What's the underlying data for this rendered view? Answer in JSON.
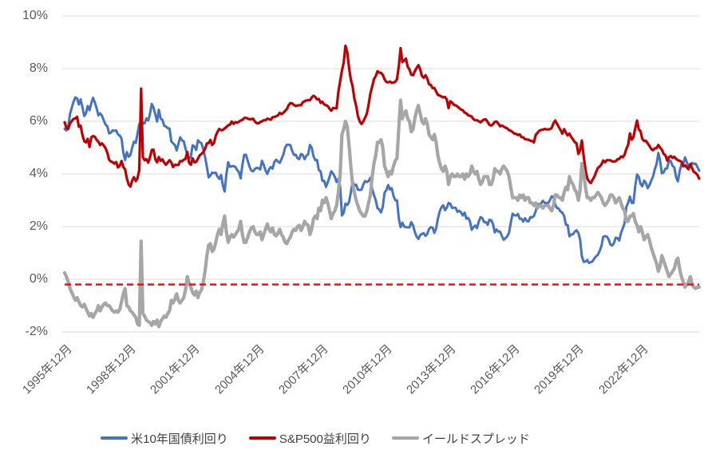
{
  "chart_data": {
    "type": "line",
    "title": "",
    "background_color": "#FFFFFF",
    "grid": "horizontal",
    "grid_color": "#D9D9D9",
    "tick_label_color": "#595959",
    "legend_text_color": "#404040",
    "legend_position": "bottom",
    "ylim": [
      -2,
      10
    ],
    "y_unit": "%",
    "y_ticks": [
      {
        "value": 10,
        "label": "10%"
      },
      {
        "value": 8,
        "label": "8%"
      },
      {
        "value": 6,
        "label": "6%"
      },
      {
        "value": 4,
        "label": "4%"
      },
      {
        "value": 2,
        "label": "2%"
      },
      {
        "value": 0,
        "label": "0%"
      },
      {
        "value": -2,
        "label": "-2%"
      }
    ],
    "x_start": "1995-12",
    "x_frequency": "monthly",
    "x_tick_interval_months": 36,
    "x_tick_labels": [
      "1995年12月",
      "1998年12月",
      "2001年12月",
      "2004年12月",
      "2007年12月",
      "2010年12月",
      "2013年12月",
      "2016年12月",
      "2019年12月",
      "2022年12月"
    ],
    "reference_line": {
      "value": -0.2,
      "color": "#FF0000",
      "style": "dashed"
    },
    "series": [
      {
        "name": "米10年国債利回り",
        "color": "#4472C4",
        "values": [
          5.71,
          5.65,
          5.81,
          6.27,
          6.51,
          6.74,
          6.91,
          6.87,
          6.64,
          6.83,
          6.53,
          6.2,
          6.3,
          6.58,
          6.42,
          6.69,
          6.89,
          6.71,
          6.49,
          6.22,
          6.3,
          6.21,
          6.03,
          5.88,
          5.81,
          5.54,
          5.57,
          5.65,
          5.64,
          5.65,
          5.5,
          5.46,
          5.34,
          4.81,
          4.53,
          4.83,
          4.65,
          4.72,
          5.0,
          5.23,
          5.18,
          5.54,
          5.9,
          5.79,
          5.94,
          5.92,
          6.11,
          6.03,
          6.28,
          6.66,
          6.52,
          6.26,
          5.99,
          6.44,
          6.1,
          6.05,
          5.83,
          5.8,
          5.74,
          5.72,
          5.24,
          5.16,
          5.1,
          4.89,
          5.14,
          5.39,
          5.28,
          5.24,
          4.97,
          4.73,
          4.57,
          4.65,
          5.09,
          5.04,
          4.91,
          5.28,
          5.21,
          5.16,
          4.93,
          4.65,
          4.26,
          3.87,
          3.94,
          4.05,
          4.03,
          4.05,
          3.9,
          3.81,
          3.96,
          3.57,
          3.33,
          3.98,
          4.45,
          4.27,
          4.29,
          4.3,
          4.27,
          4.15,
          4.08,
          3.83,
          4.35,
          4.72,
          4.73,
          4.5,
          4.28,
          4.13,
          4.1,
          4.19,
          4.23,
          4.22,
          4.17,
          4.5,
          4.34,
          4.14,
          4.0,
          4.18,
          4.26,
          4.2,
          4.46,
          4.54,
          4.47,
          4.42,
          4.57,
          4.72,
          4.99,
          5.11,
          5.11,
          5.09,
          4.88,
          4.72,
          4.73,
          4.6,
          4.56,
          4.76,
          4.72,
          4.56,
          4.69,
          4.75,
          5.1,
          5.0,
          4.67,
          4.52,
          4.53,
          4.15,
          4.1,
          3.74,
          3.74,
          3.51,
          3.68,
          3.88,
          4.1,
          4.01,
          3.89,
          3.69,
          3.81,
          3.53,
          2.42,
          2.52,
          2.87,
          2.82,
          2.93,
          3.29,
          3.72,
          3.56,
          3.59,
          3.4,
          3.39,
          3.4,
          3.59,
          3.73,
          3.69,
          3.73,
          3.85,
          3.42,
          3.2,
          3.01,
          2.7,
          2.65,
          2.54,
          2.76,
          3.29,
          3.39,
          3.58,
          3.41,
          3.46,
          3.17,
          3.0,
          3.0,
          2.3,
          1.98,
          2.15,
          2.01,
          1.98,
          1.97,
          1.97,
          2.17,
          2.05,
          1.8,
          1.62,
          1.53,
          1.68,
          1.72,
          1.75,
          1.65,
          1.72,
          1.91,
          1.98,
          1.96,
          1.76,
          1.93,
          2.3,
          2.58,
          2.74,
          2.81,
          2.62,
          2.72,
          2.9,
          2.86,
          2.71,
          2.72,
          2.71,
          2.56,
          2.6,
          2.54,
          2.42,
          2.53,
          2.3,
          2.33,
          2.21,
          1.88,
          1.98,
          2.04,
          1.94,
          2.2,
          2.36,
          2.32,
          2.17,
          2.17,
          2.07,
          2.26,
          2.24,
          2.09,
          1.78,
          1.89,
          1.81,
          1.81,
          1.64,
          1.5,
          1.56,
          1.63,
          1.76,
          2.14,
          2.49,
          2.43,
          2.42,
          2.48,
          2.3,
          2.3,
          2.19,
          2.32,
          2.21,
          2.2,
          2.36,
          2.35,
          2.4,
          2.58,
          2.86,
          2.84,
          2.87,
          2.98,
          2.91,
          2.89,
          2.89,
          3.0,
          3.15,
          3.12,
          2.83,
          2.71,
          2.68,
          2.57,
          2.53,
          2.4,
          2.07,
          2.06,
          1.63,
          1.7,
          1.71,
          1.81,
          1.86,
          1.76,
          1.5,
          0.87,
          0.66,
          0.67,
          0.73,
          0.62,
          0.65,
          0.68,
          0.79,
          0.87,
          0.93,
          1.08,
          1.26,
          1.61,
          1.64,
          1.62,
          1.52,
          1.32,
          1.28,
          1.37,
          1.58,
          1.56,
          1.47,
          1.76,
          1.93,
          2.13,
          2.75,
          2.9,
          3.14,
          2.9,
          2.9,
          3.52,
          3.98,
          3.89,
          3.62,
          3.53,
          3.75,
          3.66,
          3.46,
          3.57,
          3.75,
          3.9,
          4.17,
          4.38,
          4.8,
          4.5,
          4.02,
          4.06,
          4.21,
          4.21,
          4.54,
          4.48,
          4.31,
          4.25,
          3.87,
          3.72,
          4.1,
          4.36,
          4.39,
          4.63,
          4.45,
          4.28,
          4.28,
          4.42,
          4.38,
          4.39,
          4.26,
          4.12
        ]
      },
      {
        "name": "S&P500益利回り",
        "color": "#C00000",
        "values": [
          5.96,
          5.75,
          5.71,
          5.92,
          6.01,
          6.09,
          6.11,
          6.17,
          5.79,
          5.83,
          5.48,
          5.25,
          5.2,
          5.33,
          5.02,
          5.39,
          5.44,
          5.41,
          5.29,
          5.22,
          5.1,
          5.16,
          5.08,
          4.98,
          4.81,
          4.54,
          4.47,
          4.45,
          4.39,
          4.45,
          4.25,
          4.31,
          4.49,
          4.26,
          4.18,
          3.83,
          3.6,
          3.52,
          3.75,
          3.88,
          3.73,
          3.84,
          4.15,
          7.24,
          4.64,
          4.52,
          4.56,
          4.43,
          4.63,
          4.91,
          4.92,
          4.56,
          4.44,
          4.64,
          4.5,
          4.55,
          4.43,
          4.35,
          4.44,
          4.52,
          4.44,
          4.26,
          4.35,
          4.34,
          4.34,
          4.49,
          4.48,
          4.54,
          4.57,
          4.83,
          4.42,
          4.35,
          4.59,
          4.44,
          4.46,
          4.58,
          4.71,
          4.76,
          4.83,
          4.95,
          5.16,
          5.17,
          5.29,
          5.1,
          5.18,
          5.45,
          5.6,
          5.71,
          5.66,
          5.67,
          5.73,
          5.78,
          5.85,
          5.87,
          5.99,
          5.9,
          5.97,
          5.95,
          5.98,
          6.03,
          6.05,
          6.12,
          6.13,
          6.1,
          6.08,
          6.08,
          6.1,
          5.99,
          5.93,
          5.92,
          5.97,
          6.0,
          6.04,
          6.04,
          6.1,
          6.08,
          6.06,
          6.15,
          6.16,
          6.19,
          6.22,
          6.32,
          6.27,
          6.32,
          6.39,
          6.46,
          6.61,
          6.69,
          6.68,
          6.62,
          6.58,
          6.6,
          6.61,
          6.61,
          6.72,
          6.76,
          6.79,
          6.8,
          6.8,
          6.9,
          6.97,
          6.92,
          6.83,
          6.85,
          6.7,
          6.74,
          6.64,
          6.61,
          6.58,
          6.48,
          6.4,
          6.51,
          6.49,
          6.49,
          7.11,
          7.53,
          7.92,
          8.22,
          8.87,
          8.62,
          8.03,
          7.59,
          7.32,
          6.86,
          6.59,
          6.2,
          5.99,
          5.9,
          5.99,
          6.13,
          6.29,
          6.63,
          7.05,
          7.32,
          7.6,
          7.71,
          7.9,
          7.85,
          7.84,
          7.76,
          7.59,
          7.49,
          7.48,
          7.51,
          7.46,
          7.47,
          7.5,
          7.6,
          8.1,
          8.78,
          8.25,
          8.31,
          8.38,
          8.07,
          7.97,
          7.77,
          7.75,
          7.9,
          8.02,
          8.13,
          7.98,
          7.72,
          7.65,
          7.75,
          7.62,
          7.41,
          7.38,
          7.26,
          7.26,
          7.13,
          7.0,
          6.98,
          6.94,
          6.91,
          6.92,
          6.82,
          6.5,
          6.76,
          6.71,
          6.62,
          6.61,
          6.56,
          6.5,
          6.44,
          6.42,
          6.33,
          6.3,
          6.23,
          6.21,
          6.18,
          6.08,
          6.04,
          6.04,
          6.0,
          5.96,
          6.02,
          6.07,
          6.07,
          5.97,
          5.86,
          5.84,
          5.89,
          5.98,
          5.99,
          5.91,
          5.81,
          5.84,
          5.8,
          5.76,
          5.73,
          5.66,
          5.64,
          5.59,
          5.53,
          5.52,
          5.48,
          5.5,
          5.4,
          5.39,
          5.32,
          5.31,
          5.3,
          5.26,
          5.25,
          5.2,
          5.48,
          5.56,
          5.64,
          5.67,
          5.68,
          5.71,
          5.69,
          5.69,
          5.7,
          5.75,
          5.92,
          6.03,
          5.91,
          5.78,
          5.67,
          5.53,
          5.7,
          5.57,
          5.46,
          5.53,
          5.4,
          5.31,
          5.21,
          5.16,
          4.76,
          4.9,
          5.27,
          4.66,
          4.17,
          3.83,
          3.72,
          3.65,
          3.78,
          3.89,
          4.07,
          4.23,
          4.28,
          4.36,
          4.51,
          4.44,
          4.52,
          4.52,
          4.52,
          4.48,
          4.47,
          4.48,
          4.56,
          4.57,
          4.66,
          4.63,
          4.73,
          4.95,
          5.1,
          5.54,
          5.3,
          5.4,
          5.72,
          6.03,
          5.69,
          5.62,
          5.33,
          5.25,
          5.26,
          5.16,
          5.07,
          4.95,
          4.9,
          4.97,
          4.98,
          5.1,
          5.0,
          4.92,
          4.76,
          4.71,
          4.51,
          4.64,
          4.68,
          4.61,
          4.65,
          4.57,
          4.52,
          4.5,
          4.46,
          4.29,
          4.33,
          4.25,
          4.18,
          4.38,
          4.22,
          4.08,
          4.04,
          3.96,
          3.82
        ]
      },
      {
        "name": "イールドスプレッド",
        "color": "#A6A6A6",
        "values": [
          0.25,
          0.1,
          -0.1,
          -0.35,
          -0.5,
          -0.65,
          -0.8,
          -0.7,
          -0.85,
          -1.0,
          -1.05,
          -0.95,
          -1.1,
          -1.25,
          -1.4,
          -1.3,
          -1.45,
          -1.3,
          -1.2,
          -1.0,
          -1.2,
          -1.05,
          -0.95,
          -0.9,
          -1.0,
          -1.0,
          -1.1,
          -1.2,
          -1.25,
          -1.2,
          -1.25,
          -1.15,
          -0.85,
          -0.55,
          -0.35,
          -1.0,
          -1.05,
          -1.2,
          -1.25,
          -1.35,
          -1.45,
          -1.7,
          -1.75,
          1.45,
          -1.3,
          -1.4,
          -1.55,
          -1.6,
          -1.65,
          -1.75,
          -1.6,
          -1.7,
          -1.55,
          -1.8,
          -1.6,
          -1.5,
          -1.4,
          -1.45,
          -1.3,
          -1.2,
          -0.8,
          -0.9,
          -0.75,
          -0.55,
          -0.8,
          -0.9,
          -0.8,
          -0.7,
          -0.4,
          0.1,
          -0.15,
          -0.3,
          -0.5,
          -0.6,
          -0.45,
          -0.7,
          -0.5,
          -0.4,
          -0.1,
          0.3,
          0.9,
          1.3,
          1.35,
          1.05,
          1.15,
          1.4,
          1.7,
          1.9,
          1.7,
          2.1,
          2.4,
          1.8,
          1.4,
          1.6,
          1.7,
          1.6,
          1.7,
          1.8,
          1.9,
          2.2,
          1.7,
          1.4,
          1.4,
          1.6,
          1.8,
          1.95,
          2.0,
          1.8,
          1.7,
          1.7,
          1.8,
          1.5,
          1.7,
          1.9,
          2.1,
          1.9,
          1.8,
          1.95,
          1.7,
          1.65,
          1.75,
          1.9,
          1.7,
          1.6,
          1.4,
          1.35,
          1.5,
          1.6,
          1.8,
          1.9,
          1.85,
          2.0,
          2.05,
          1.85,
          2.0,
          2.2,
          2.1,
          2.05,
          1.7,
          1.9,
          2.3,
          2.4,
          2.3,
          2.7,
          2.6,
          3.0,
          2.9,
          3.1,
          2.9,
          2.6,
          2.3,
          2.5,
          2.6,
          2.8,
          3.3,
          4.0,
          5.5,
          5.7,
          6.0,
          5.8,
          5.1,
          4.3,
          3.6,
          3.3,
          3.0,
          2.8,
          2.6,
          2.5,
          2.4,
          2.4,
          2.6,
          2.9,
          3.2,
          3.9,
          4.4,
          4.7,
          5.2,
          5.2,
          5.3,
          5.0,
          4.3,
          4.1,
          3.9,
          4.1,
          4.0,
          4.3,
          4.5,
          4.6,
          5.8,
          6.8,
          6.1,
          6.3,
          6.4,
          6.1,
          6.0,
          5.6,
          5.7,
          6.1,
          6.4,
          6.6,
          6.3,
          6.0,
          5.9,
          6.1,
          5.9,
          5.5,
          5.4,
          5.3,
          5.5,
          5.2,
          4.7,
          4.4,
          4.2,
          4.1,
          4.3,
          4.1,
          3.6,
          3.9,
          4.0,
          3.9,
          3.9,
          4.0,
          3.9,
          3.9,
          4.0,
          3.8,
          4.0,
          3.9,
          4.0,
          4.3,
          4.1,
          4.0,
          4.1,
          3.8,
          3.6,
          3.7,
          3.9,
          3.9,
          3.9,
          3.6,
          3.6,
          3.8,
          4.2,
          4.1,
          4.1,
          4.0,
          4.2,
          4.3,
          4.2,
          4.1,
          3.9,
          3.5,
          3.1,
          3.1,
          3.1,
          3.0,
          3.2,
          3.1,
          3.2,
          3.0,
          3.1,
          3.1,
          2.9,
          2.9,
          2.8,
          2.9,
          2.7,
          2.8,
          2.8,
          2.7,
          2.8,
          2.8,
          2.8,
          2.7,
          2.6,
          2.8,
          3.2,
          3.2,
          3.1,
          3.1,
          3.0,
          3.3,
          3.5,
          3.4,
          3.9,
          3.7,
          3.6,
          3.4,
          3.3,
          3.0,
          3.4,
          4.4,
          4.0,
          3.5,
          3.1,
          3.1,
          3.0,
          3.1,
          3.1,
          3.2,
          3.3,
          3.2,
          3.1,
          2.9,
          2.8,
          2.9,
          3.0,
          3.2,
          3.2,
          3.1,
          2.9,
          3.0,
          3.1,
          2.9,
          2.7,
          2.6,
          2.2,
          2.2,
          2.4,
          2.4,
          2.5,
          2.2,
          2.05,
          1.8,
          2.0,
          1.8,
          1.5,
          1.6,
          1.7,
          1.5,
          1.2,
          1.0,
          0.8,
          0.6,
          0.3,
          0.5,
          0.9,
          0.7,
          0.5,
          0.3,
          0.1,
          0.2,
          0.3,
          0.4,
          0.7,
          0.8,
          0.4,
          0.1,
          -0.1,
          -0.3,
          -0.2,
          -0.1,
          0.1,
          -0.2,
          -0.3,
          -0.35,
          -0.3,
          -0.3
        ]
      }
    ]
  }
}
